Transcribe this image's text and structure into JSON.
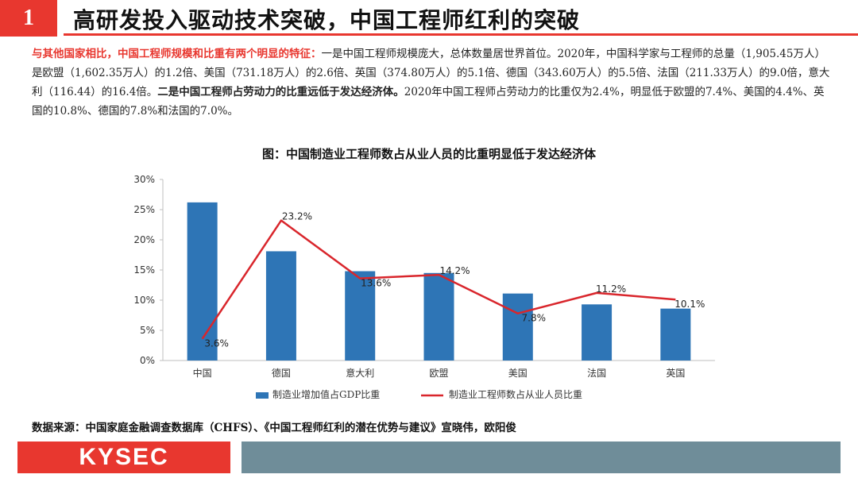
{
  "header": {
    "number": "1",
    "title": "高研发投入驱动技术突破，中国工程师红利的突破"
  },
  "paragraph": {
    "lead": "与其他国家相比，中国工程师规模和比重有两个明显的特征：",
    "part1": "一是中国工程师规模庞大，总体数量居世界首位。2020年，中国科学家与工程师的总量（1,905.45万人）是欧盟（1,602.35万人）的1.2倍、美国（731.18万人）的2.6倍、英国（374.80万人）的5.1倍、德国（343.60万人）的5.5倍、法国（211.33万人）的9.0倍，意大利（116.44）的16.4倍。",
    "part2_bold": "二是中国工程师占劳动力的比重远低于发达经济体。",
    "part3": "2020年中国工程师占劳动力的比重仅为2.4%，明显低于欧盟的7.4%、美国的4.4%、英国的10.8%、德国的7.8%和法国的7.0%。"
  },
  "chart_data": {
    "type": "bar",
    "title": "图：中国制造业工程师数占从业人员的比重明显低于发达经济体",
    "categories": [
      "中国",
      "德国",
      "意大利",
      "欧盟",
      "美国",
      "法国",
      "英国"
    ],
    "ylim": [
      0,
      30
    ],
    "yticks": [
      "0%",
      "5%",
      "10%",
      "15%",
      "20%",
      "25%",
      "30%"
    ],
    "series": [
      {
        "name": "制造业增加值占GDP比重",
        "type": "bar",
        "color": "#2e75b6",
        "values": [
          26.2,
          18.1,
          14.8,
          14.5,
          11.1,
          9.3,
          8.6
        ]
      },
      {
        "name": "制造业工程师数占从业人员比重",
        "type": "line",
        "color": "#d9262c",
        "values": [
          3.6,
          23.2,
          13.6,
          14.2,
          7.8,
          11.2,
          10.1
        ],
        "labels": [
          "3.6%",
          "23.2%",
          "13.6%",
          "14.2%",
          "7.8%",
          "11.2%",
          "10.1%"
        ]
      }
    ],
    "legend_position": "bottom",
    "grid": false
  },
  "source": "数据来源：中国家庭金融调查数据库（CHFS）、《中国工程师红利的潜在优势与建议》宣晓伟，欧阳俊",
  "footer": {
    "logo": "KYSEC"
  }
}
